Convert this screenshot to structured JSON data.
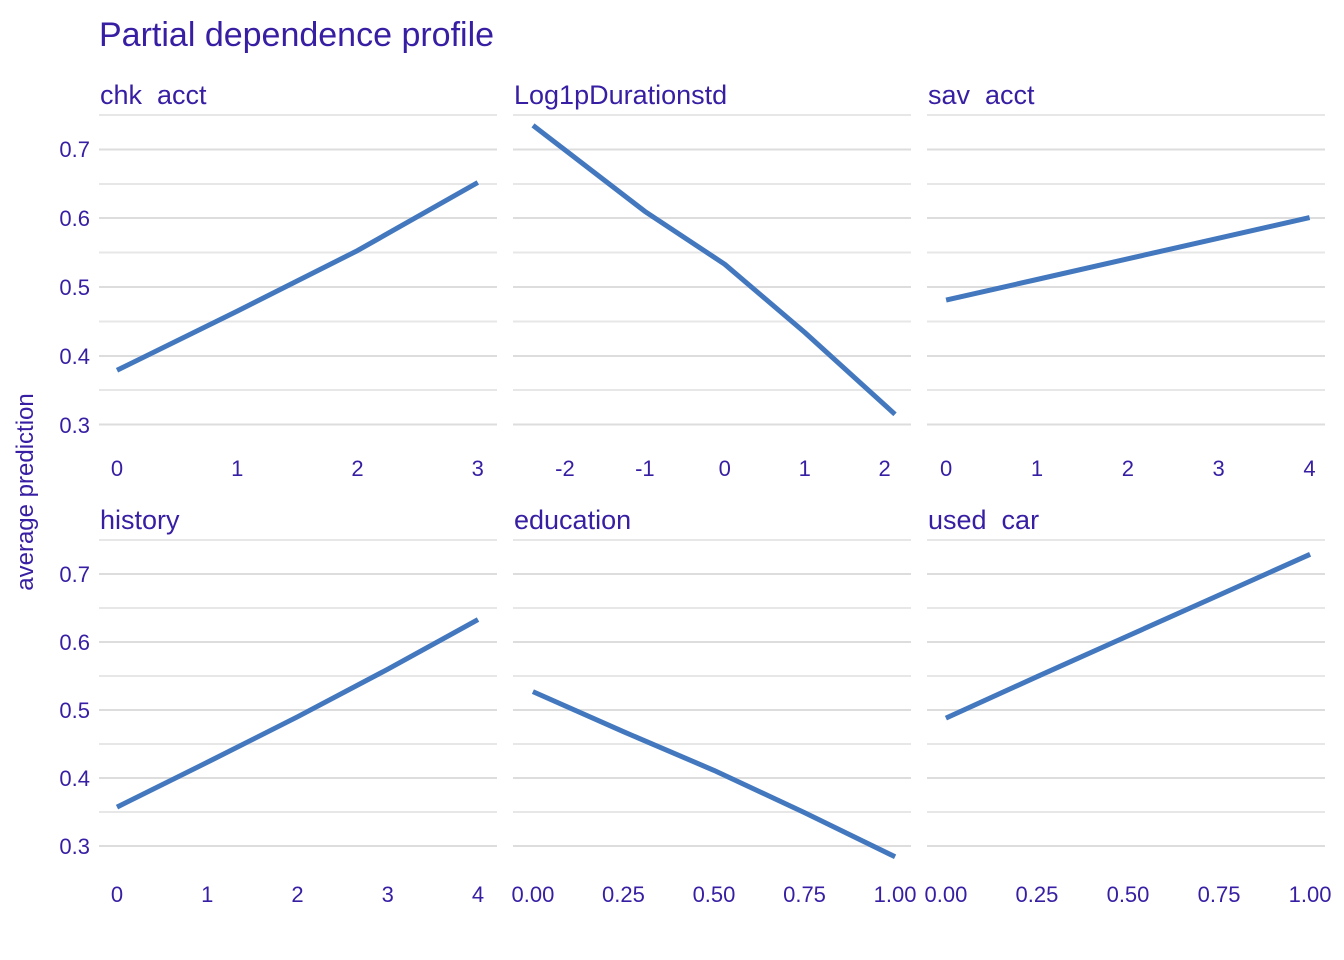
{
  "colors": {
    "accent_text": "#371ea3",
    "line": "#4378bf",
    "grid_major": "#dddddd",
    "grid_minor": "#e7e7e7",
    "background": "#ffffff"
  },
  "chart_data": {
    "type": "line",
    "title": "Partial dependence profile",
    "ylabel": "average prediction",
    "xlabel": "",
    "legend": "none",
    "grid": "horizontal gridlines only",
    "facet_layout": {
      "rows": 2,
      "cols": 3
    },
    "ylim": [
      0.266,
      0.753
    ],
    "y_major_ticks": [
      {
        "label": "0.7",
        "v": 0.7
      },
      {
        "label": "0.6",
        "v": 0.6
      },
      {
        "label": "0.5",
        "v": 0.5
      },
      {
        "label": "0.4",
        "v": 0.4
      },
      {
        "label": "0.3",
        "v": 0.3
      }
    ],
    "y_minor_gridlines": [
      0.75,
      0.65,
      0.55,
      0.45,
      0.35
    ],
    "panels": [
      {
        "facet": "chk  acct",
        "xlim": [
          -0.15,
          3.16
        ],
        "x_ticks": [
          {
            "label": "0",
            "v": 0
          },
          {
            "label": "1",
            "v": 1
          },
          {
            "label": "2",
            "v": 2
          },
          {
            "label": "3",
            "v": 3
          }
        ],
        "line": [
          [
            0,
            0.379
          ],
          [
            1,
            0.465
          ],
          [
            2,
            0.553
          ],
          [
            3,
            0.652
          ]
        ]
      },
      {
        "facet": "Log1pDurationstd",
        "xlim": [
          -2.65,
          2.33
        ],
        "x_ticks": [
          {
            "label": "-2",
            "v": -2
          },
          {
            "label": "-1",
            "v": -1
          },
          {
            "label": "0",
            "v": 0
          },
          {
            "label": "1",
            "v": 1
          },
          {
            "label": "2",
            "v": 2
          }
        ],
        "line": [
          [
            -2.4,
            0.735
          ],
          [
            -1,
            0.61
          ],
          [
            0,
            0.533
          ],
          [
            1,
            0.434
          ],
          [
            2.13,
            0.315
          ]
        ]
      },
      {
        "facet": "sav  acct",
        "xlim": [
          -0.21,
          4.17
        ],
        "x_ticks": [
          {
            "label": "0",
            "v": 0
          },
          {
            "label": "1",
            "v": 1
          },
          {
            "label": "2",
            "v": 2
          },
          {
            "label": "3",
            "v": 3
          },
          {
            "label": "4",
            "v": 4
          }
        ],
        "line": [
          [
            0,
            0.481
          ],
          [
            1,
            0.511
          ],
          [
            2,
            0.541
          ],
          [
            3,
            0.571
          ],
          [
            4,
            0.601
          ]
        ]
      },
      {
        "facet": "history",
        "xlim": [
          -0.2,
          4.21
        ],
        "x_ticks": [
          {
            "label": "0",
            "v": 0
          },
          {
            "label": "1",
            "v": 1
          },
          {
            "label": "2",
            "v": 2
          },
          {
            "label": "3",
            "v": 3
          },
          {
            "label": "4",
            "v": 4
          }
        ],
        "line": [
          [
            0,
            0.357
          ],
          [
            1,
            0.423
          ],
          [
            2,
            0.49
          ],
          [
            3,
            0.56
          ],
          [
            4,
            0.633
          ]
        ]
      },
      {
        "facet": "education",
        "xlim": [
          -0.055,
          1.044
        ],
        "x_ticks": [
          {
            "label": "0.00",
            "v": 0
          },
          {
            "label": "0.25",
            "v": 0.25
          },
          {
            "label": "0.50",
            "v": 0.5
          },
          {
            "label": "0.75",
            "v": 0.75
          },
          {
            "label": "1.00",
            "v": 1
          }
        ],
        "line": [
          [
            0,
            0.527
          ],
          [
            0.25,
            0.468
          ],
          [
            0.5,
            0.411
          ],
          [
            0.75,
            0.349
          ],
          [
            1,
            0.284
          ]
        ]
      },
      {
        "facet": "used  car",
        "xlim": [
          -0.052,
          1.041
        ],
        "x_ticks": [
          {
            "label": "0.00",
            "v": 0
          },
          {
            "label": "0.25",
            "v": 0.25
          },
          {
            "label": "0.50",
            "v": 0.5
          },
          {
            "label": "0.75",
            "v": 0.75
          },
          {
            "label": "1.00",
            "v": 1
          }
        ],
        "line": [
          [
            0,
            0.488
          ],
          [
            0.25,
            0.549
          ],
          [
            0.5,
            0.609
          ],
          [
            0.75,
            0.669
          ],
          [
            1,
            0.729
          ]
        ]
      }
    ]
  }
}
